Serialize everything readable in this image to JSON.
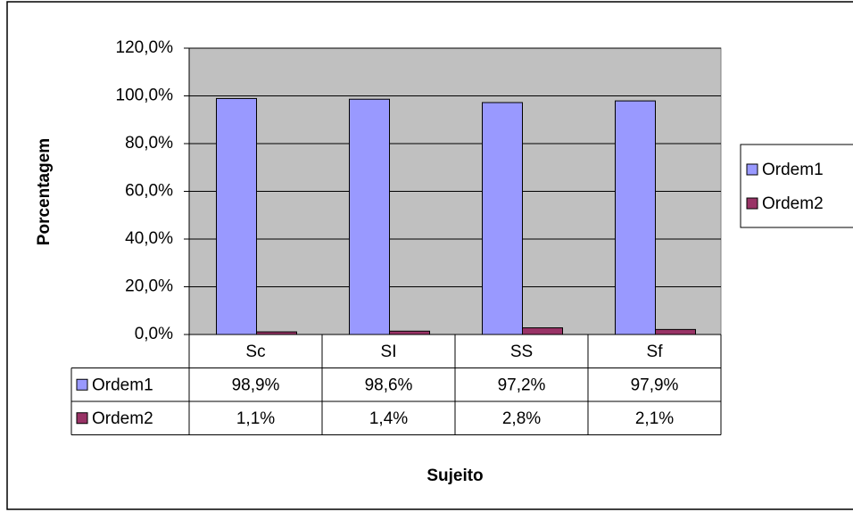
{
  "chart_data": {
    "type": "bar",
    "xlabel": "Sujeito",
    "ylabel": "Porcentagem",
    "categories": [
      "Sc",
      "SI",
      "SS",
      "Sf"
    ],
    "series": [
      {
        "name": "Ordem1",
        "color": "#9999ff",
        "values": [
          98.9,
          98.6,
          97.2,
          97.9
        ],
        "value_labels": [
          "98,9%",
          "98,6%",
          "97,2%",
          "97,9%"
        ]
      },
      {
        "name": "Ordem2",
        "color": "#993366",
        "values": [
          1.1,
          1.4,
          2.8,
          2.1
        ],
        "value_labels": [
          "1,1%",
          "1,4%",
          "2,8%",
          "2,1%"
        ]
      }
    ],
    "ylim": [
      0,
      120
    ],
    "yticks": [
      {
        "value": 0,
        "label": "0,0%"
      },
      {
        "value": 20,
        "label": "20,0%"
      },
      {
        "value": 40,
        "label": "40,0%"
      },
      {
        "value": 60,
        "label": "60,0%"
      },
      {
        "value": 80,
        "label": "80,0%"
      },
      {
        "value": 100,
        "label": "100,0%"
      },
      {
        "value": 120,
        "label": "120,0%"
      }
    ],
    "grid": true,
    "legend": "right",
    "plot_background": "#c0c0c0"
  }
}
